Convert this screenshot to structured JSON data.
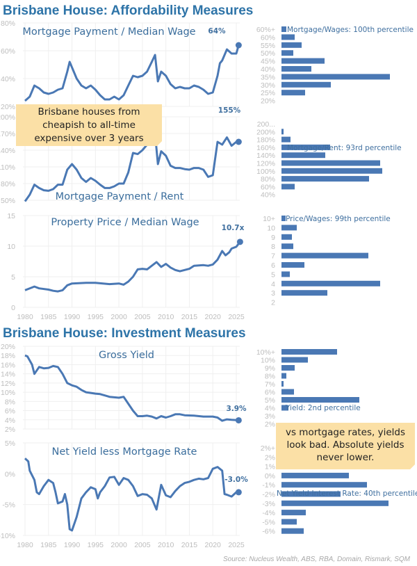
{
  "headings": {
    "affordability": "Brisbane House: Affordability Measures",
    "investment": "Brisbane House: Investment Measures"
  },
  "notes": [
    [
      "Brisbane houses from",
      "cheapish to all-time",
      "expensive over 3 years"
    ],
    [
      "vs mortgage rates, yields",
      "look bad. Absolute yields",
      "never lower."
    ]
  ],
  "source": "Source: Nucleus Wealth, ABS, RBA, Domain, Rismark, SQM",
  "colors": {
    "line": "#4a78b4",
    "bar": "#4a78b4",
    "note": "#fbe0a6",
    "grid": "#efefef",
    "heading": "#2e74a8"
  },
  "chart_data": [
    {
      "type": "line",
      "title": "Mortgage Payment / Median Wage",
      "ylim": [
        20,
        80
      ],
      "yticks": [
        "80%",
        "60%",
        "40%",
        "20%"
      ],
      "ytick_values": [
        80,
        60,
        40,
        20
      ],
      "latest_label": "64%",
      "points": [
        [
          1980,
          24
        ],
        [
          1981,
          27
        ],
        [
          1982,
          35
        ],
        [
          1983,
          33
        ],
        [
          1984,
          30
        ],
        [
          1985,
          29
        ],
        [
          1986,
          30
        ],
        [
          1987,
          32
        ],
        [
          1988,
          33
        ],
        [
          1989,
          45
        ],
        [
          1989.5,
          52
        ],
        [
          1990,
          48
        ],
        [
          1991,
          40
        ],
        [
          1992,
          35
        ],
        [
          1993,
          33
        ],
        [
          1994,
          35
        ],
        [
          1995,
          32
        ],
        [
          1996,
          28
        ],
        [
          1997,
          25
        ],
        [
          1998,
          25
        ],
        [
          1999,
          27
        ],
        [
          2000,
          25
        ],
        [
          2001,
          28
        ],
        [
          2002,
          35
        ],
        [
          2003,
          42
        ],
        [
          2004,
          41
        ],
        [
          2005,
          42
        ],
        [
          2006,
          45
        ],
        [
          2007,
          52
        ],
        [
          2007.7,
          57
        ],
        [
          2008.3,
          38
        ],
        [
          2009,
          45
        ],
        [
          2010,
          42
        ],
        [
          2011,
          36
        ],
        [
          2012,
          33
        ],
        [
          2013,
          34
        ],
        [
          2014,
          33
        ],
        [
          2015,
          33
        ],
        [
          2016,
          35
        ],
        [
          2017,
          34
        ],
        [
          2018,
          32
        ],
        [
          2019,
          29
        ],
        [
          2020,
          30
        ],
        [
          2021,
          42
        ],
        [
          2021.5,
          51
        ],
        [
          2022,
          53
        ],
        [
          2023,
          61
        ],
        [
          2024,
          58
        ],
        [
          2025,
          58
        ],
        [
          2025.5,
          64
        ]
      ]
    },
    {
      "type": "line",
      "title": "Mortgage Payment / Rent",
      "ylim": [
        50,
        200
      ],
      "yticks": [
        "200%",
        "170%",
        "140%",
        "110%",
        "80%",
        "50%"
      ],
      "ytick_values": [
        200,
        170,
        140,
        110,
        80,
        50
      ],
      "latest_label": "155%",
      "points": [
        [
          1980,
          48
        ],
        [
          1981,
          60
        ],
        [
          1982,
          78
        ],
        [
          1983,
          72
        ],
        [
          1984,
          68
        ],
        [
          1985,
          67
        ],
        [
          1986,
          70
        ],
        [
          1987,
          78
        ],
        [
          1988,
          78
        ],
        [
          1989,
          105
        ],
        [
          1990,
          115
        ],
        [
          1991,
          105
        ],
        [
          1992,
          90
        ],
        [
          1993,
          83
        ],
        [
          1994,
          90
        ],
        [
          1995,
          85
        ],
        [
          1996,
          78
        ],
        [
          1997,
          72
        ],
        [
          1998,
          72
        ],
        [
          1999,
          75
        ],
        [
          2000,
          80
        ],
        [
          2001,
          80
        ],
        [
          2002,
          100
        ],
        [
          2003,
          135
        ],
        [
          2004,
          133
        ],
        [
          2005,
          140
        ],
        [
          2006,
          150
        ],
        [
          2007,
          165
        ],
        [
          2007.7,
          170
        ],
        [
          2008.3,
          115
        ],
        [
          2009,
          138
        ],
        [
          2010,
          130
        ],
        [
          2011,
          112
        ],
        [
          2012,
          108
        ],
        [
          2013,
          108
        ],
        [
          2014,
          106
        ],
        [
          2015,
          105
        ],
        [
          2016,
          108
        ],
        [
          2017,
          108
        ],
        [
          2018,
          105
        ],
        [
          2019,
          92
        ],
        [
          2020,
          95
        ],
        [
          2021,
          155
        ],
        [
          2022,
          150
        ],
        [
          2023,
          163
        ],
        [
          2024,
          148
        ],
        [
          2025,
          155
        ],
        [
          2025.5,
          155
        ]
      ]
    },
    {
      "type": "line",
      "title": "Property Price / Median Wage",
      "ylim": [
        0,
        15
      ],
      "yticks": [
        "15",
        "10",
        "5",
        "0"
      ],
      "ytick_values": [
        15,
        10,
        5,
        0
      ],
      "latest_label": "10.7x",
      "xticks": [
        "1980",
        "1985",
        "1990",
        "1995",
        "2000",
        "2005",
        "2010",
        "2015",
        "2020",
        "2025"
      ],
      "points": [
        [
          1980,
          2.8
        ],
        [
          1982,
          3.4
        ],
        [
          1983,
          3.1
        ],
        [
          1985,
          2.9
        ],
        [
          1986,
          2.7
        ],
        [
          1987,
          2.6
        ],
        [
          1988,
          2.8
        ],
        [
          1989,
          3.6
        ],
        [
          1990,
          3.9
        ],
        [
          1993,
          4.0
        ],
        [
          1995,
          4.0
        ],
        [
          1998,
          3.8
        ],
        [
          2000,
          3.9
        ],
        [
          2001,
          3.7
        ],
        [
          2002,
          4.2
        ],
        [
          2003,
          5.0
        ],
        [
          2004,
          6.2
        ],
        [
          2005,
          6.3
        ],
        [
          2006,
          6.2
        ],
        [
          2007,
          6.8
        ],
        [
          2008,
          7.4
        ],
        [
          2009,
          6.6
        ],
        [
          2010,
          7.1
        ],
        [
          2011,
          6.5
        ],
        [
          2012,
          6.1
        ],
        [
          2013,
          5.9
        ],
        [
          2014,
          6.1
        ],
        [
          2015,
          6.3
        ],
        [
          2016,
          6.8
        ],
        [
          2018,
          6.9
        ],
        [
          2019,
          6.8
        ],
        [
          2020,
          7.0
        ],
        [
          2021,
          7.8
        ],
        [
          2022,
          9.2
        ],
        [
          2022.7,
          8.5
        ],
        [
          2023.5,
          9.0
        ],
        [
          2024,
          9.6
        ],
        [
          2025,
          9.9
        ],
        [
          2025.8,
          10.7
        ]
      ]
    },
    {
      "type": "line",
      "title": "Gross Yield",
      "ylim": [
        2,
        20
      ],
      "yticks": [
        "20%",
        "18%",
        "16%",
        "14%",
        "12%",
        "10%",
        "8%",
        "6%",
        "4%",
        "2%"
      ],
      "ytick_values": [
        20,
        18,
        16,
        14,
        12,
        10,
        8,
        6,
        4,
        2
      ],
      "latest_label": "3.9%",
      "points": [
        [
          1980,
          18
        ],
        [
          1980.5,
          17.8
        ],
        [
          1981.5,
          16
        ],
        [
          1982,
          14
        ],
        [
          1983,
          15.5
        ],
        [
          1984,
          15.2
        ],
        [
          1985,
          15.3
        ],
        [
          1986,
          15.7
        ],
        [
          1987,
          15.5
        ],
        [
          1988,
          14
        ],
        [
          1989,
          12
        ],
        [
          1990,
          11.5
        ],
        [
          1991,
          11.2
        ],
        [
          1992,
          10.5
        ],
        [
          1993,
          10
        ],
        [
          1995,
          9.7
        ],
        [
          1996,
          9.6
        ],
        [
          1997,
          9.3
        ],
        [
          1998,
          9
        ],
        [
          2000,
          8.8
        ],
        [
          2001,
          9
        ],
        [
          2002,
          7.5
        ],
        [
          2003,
          6
        ],
        [
          2004,
          4.8
        ],
        [
          2005,
          4.8
        ],
        [
          2006,
          4.9
        ],
        [
          2007,
          4.7
        ],
        [
          2008,
          4.3
        ],
        [
          2009,
          4.8
        ],
        [
          2010,
          4.5
        ],
        [
          2011,
          4.8
        ],
        [
          2012,
          5.2
        ],
        [
          2013,
          5.2
        ],
        [
          2014,
          5.0
        ],
        [
          2016,
          4.9
        ],
        [
          2018,
          4.7
        ],
        [
          2020,
          4.7
        ],
        [
          2021,
          4.5
        ],
        [
          2022,
          3.8
        ],
        [
          2023,
          4.1
        ],
        [
          2024,
          4.0
        ],
        [
          2025.5,
          3.9
        ]
      ]
    },
    {
      "type": "line",
      "title": "Net Yield less Mortgage Rate",
      "ylim": [
        -10,
        5
      ],
      "yticks": [
        "5%",
        "0%",
        "-5%",
        "-10%"
      ],
      "ytick_values": [
        5,
        0,
        -5,
        -10
      ],
      "latest_label": "-3.0%",
      "xticks": [
        "1980",
        "1985",
        "1990",
        "1995",
        "2000",
        "2005",
        "2010",
        "2015",
        "2020",
        "2025"
      ],
      "points": [
        [
          1980,
          2.5
        ],
        [
          1980.7,
          2
        ],
        [
          1981,
          0.5
        ],
        [
          1982,
          -1
        ],
        [
          1982.5,
          -3
        ],
        [
          1983,
          -3.3
        ],
        [
          1984,
          -2
        ],
        [
          1985,
          -1
        ],
        [
          1986,
          -1.5
        ],
        [
          1986.5,
          -3
        ],
        [
          1987,
          -4.8
        ],
        [
          1988,
          -4.5
        ],
        [
          1988.5,
          -3.3
        ],
        [
          1989,
          -5
        ],
        [
          1989.5,
          -9
        ],
        [
          1990,
          -9.2
        ],
        [
          1991,
          -7
        ],
        [
          1992,
          -4
        ],
        [
          1993,
          -3
        ],
        [
          1994,
          -2.2
        ],
        [
          1995,
          -2.5
        ],
        [
          1995.5,
          -4
        ],
        [
          1996,
          -3
        ],
        [
          1997,
          -2
        ],
        [
          1998,
          -0.6
        ],
        [
          1999,
          -0.5
        ],
        [
          2000,
          -1.8
        ],
        [
          2001,
          -0.7
        ],
        [
          2002,
          -1
        ],
        [
          2003,
          -2
        ],
        [
          2004,
          -3.6
        ],
        [
          2005,
          -3.3
        ],
        [
          2006,
          -3.4
        ],
        [
          2007,
          -4
        ],
        [
          2008,
          -5.8
        ],
        [
          2009,
          -1.8
        ],
        [
          2010,
          -3.5
        ],
        [
          2011,
          -3.8
        ],
        [
          2012,
          -2.8
        ],
        [
          2013,
          -2
        ],
        [
          2014,
          -1.5
        ],
        [
          2015,
          -1.3
        ],
        [
          2016,
          -1
        ],
        [
          2017,
          -0.8
        ],
        [
          2018,
          -0.9
        ],
        [
          2019,
          -0.7
        ],
        [
          2020,
          0.8
        ],
        [
          2021,
          1.1
        ],
        [
          2022,
          0.5
        ],
        [
          2022.5,
          -3.3
        ],
        [
          2023,
          -3.4
        ],
        [
          2024,
          -3.7
        ],
        [
          2025,
          -3
        ],
        [
          2025.5,
          -3.0
        ]
      ]
    },
    {
      "type": "bar",
      "orientation": "horizontal",
      "annotation": "Mortgage/Wages: 100th percentile",
      "categories": [
        "60%+",
        "60%",
        "55%",
        "50%",
        "45%",
        "40%",
        "35%",
        "30%",
        "25%",
        "20%"
      ],
      "values": [
        7,
        19,
        29,
        17,
        62,
        43,
        156,
        71,
        34,
        0
      ]
    },
    {
      "type": "bar",
      "orientation": "horizontal",
      "annotation": "Mortgage/Rent: 93rd percentile",
      "categories": [
        "200...",
        "200%",
        "180%",
        "160%",
        "140%",
        "120%",
        "100%",
        "80%",
        "60%",
        "40%"
      ],
      "values": [
        0,
        3,
        13,
        70,
        63,
        142,
        145,
        126,
        19,
        0
      ]
    },
    {
      "type": "bar",
      "orientation": "horizontal",
      "annotation": "Price/Wages: 99th percentile",
      "categories": [
        "10+",
        "10",
        "9",
        "8",
        "7",
        "6",
        "5",
        "4",
        "3",
        "2"
      ],
      "values": [
        6,
        22,
        15,
        17,
        125,
        33,
        12,
        142,
        66,
        0
      ]
    },
    {
      "type": "bar",
      "orientation": "horizontal",
      "annotation": "Yield: 2nd percentile",
      "categories": [
        "10%+",
        "10%",
        "9%",
        "8%",
        "7%",
        "6%",
        "5%",
        "4%",
        "3%",
        "2%"
      ],
      "values": [
        80,
        38,
        19,
        7,
        3,
        18,
        112,
        10,
        0,
        0
      ]
    },
    {
      "type": "bar",
      "orientation": "horizontal",
      "annotation": "Net Yield-Interest Rate: 40th percentile",
      "categories": [
        "2%+",
        "2%",
        "1%",
        "0%",
        "-1%",
        "-2%",
        "-3%",
        "-4%",
        "-5%",
        "-6%"
      ],
      "values": [
        0,
        0,
        0,
        97,
        123,
        85,
        154,
        35,
        22,
        32
      ]
    }
  ]
}
